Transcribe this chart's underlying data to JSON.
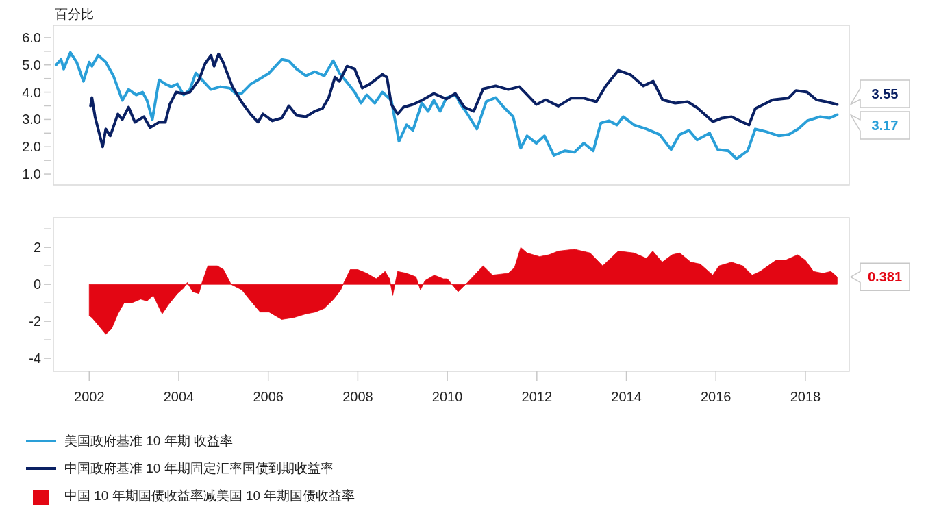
{
  "chart_data": [
    {
      "type": "line",
      "ylabel": "百分比",
      "xlim": [
        2001.2,
        2018.98
      ],
      "ylim": [
        0.6,
        6.45
      ],
      "yticks": [
        {
          "value": 1,
          "label": "1.0"
        },
        {
          "value": 1.5,
          "label": null
        },
        {
          "value": 2,
          "label": "2.0"
        },
        {
          "value": 2.5,
          "label": null
        },
        {
          "value": 3,
          "label": "3.0"
        },
        {
          "value": 3.5,
          "label": null
        },
        {
          "value": 4,
          "label": "4.0"
        },
        {
          "value": 4.5,
          "label": null
        },
        {
          "value": 5,
          "label": "5.0"
        },
        {
          "value": 5.5,
          "label": null
        },
        {
          "value": 6,
          "label": "6.0"
        }
      ],
      "tick_labels": "y",
      "legend": "bottom",
      "series": [
        {
          "name": "美国政府基准 10 年期 收益率",
          "color": "#2a9fd8",
          "x": [
            2001.26,
            2001.37,
            2001.43,
            2001.58,
            2001.72,
            2001.87,
            2002.0,
            2002.06,
            2002.2,
            2002.37,
            2002.54,
            2002.74,
            2002.88,
            2003.05,
            2003.19,
            2003.29,
            2003.41,
            2003.56,
            2003.7,
            2003.83,
            2003.97,
            2004.11,
            2004.25,
            2004.38,
            2004.52,
            2004.72,
            2004.93,
            2005.13,
            2005.27,
            2005.4,
            2005.61,
            2005.82,
            2006.02,
            2006.3,
            2006.46,
            2006.63,
            2006.84,
            2007.04,
            2007.25,
            2007.45,
            2007.59,
            2007.79,
            2007.93,
            2008.07,
            2008.2,
            2008.38,
            2008.55,
            2008.75,
            2008.92,
            2009.09,
            2009.23,
            2009.43,
            2009.57,
            2009.7,
            2009.84,
            2009.98,
            2010.19,
            2010.28,
            2010.45,
            2010.66,
            2010.87,
            2011.08,
            2011.26,
            2011.47,
            2011.64,
            2011.78,
            2011.99,
            2012.17,
            2012.38,
            2012.63,
            2012.84,
            2013.05,
            2013.26,
            2013.43,
            2013.61,
            2013.79,
            2013.93,
            2014.17,
            2014.45,
            2014.74,
            2015.0,
            2015.19,
            2015.4,
            2015.58,
            2015.86,
            2016.04,
            2016.28,
            2016.46,
            2016.71,
            2016.88,
            2017.13,
            2017.41,
            2017.63,
            2017.84,
            2018.04,
            2018.33,
            2018.54,
            2018.71
          ],
          "values": [
            5.0,
            5.2,
            4.85,
            5.45,
            5.1,
            4.4,
            5.1,
            4.95,
            5.35,
            5.1,
            4.6,
            3.7,
            4.1,
            3.9,
            4.0,
            3.7,
            3.0,
            4.45,
            4.3,
            4.2,
            4.3,
            3.9,
            4.1,
            4.7,
            4.45,
            4.1,
            4.2,
            4.15,
            3.95,
            3.95,
            4.3,
            4.5,
            4.7,
            5.2,
            5.15,
            4.85,
            4.6,
            4.75,
            4.6,
            5.15,
            4.7,
            4.3,
            4.0,
            3.6,
            3.9,
            3.6,
            4.0,
            3.7,
            2.2,
            2.8,
            2.6,
            3.6,
            3.3,
            3.7,
            3.3,
            3.8,
            3.9,
            3.6,
            3.2,
            2.65,
            3.66,
            3.8,
            3.45,
            3.1,
            1.95,
            2.4,
            2.13,
            2.4,
            1.68,
            1.85,
            1.8,
            2.13,
            1.85,
            2.87,
            2.95,
            2.8,
            3.1,
            2.8,
            2.65,
            2.45,
            1.9,
            2.45,
            2.6,
            2.25,
            2.5,
            1.9,
            1.85,
            1.56,
            1.85,
            2.65,
            2.55,
            2.4,
            2.45,
            2.65,
            2.95,
            3.1,
            3.05,
            3.17
          ]
        },
        {
          "name": "中国政府基准 10 年期固定汇率国债到期收益率",
          "color": "#0a2063",
          "x": [
            2002.03,
            2002.06,
            2002.13,
            2002.3,
            2002.37,
            2002.47,
            2002.64,
            2002.74,
            2002.88,
            2003.02,
            2003.22,
            2003.36,
            2003.56,
            2003.7,
            2003.8,
            2003.94,
            2004.11,
            2004.25,
            2004.45,
            2004.59,
            2004.72,
            2004.79,
            2004.89,
            2004.99,
            2005.2,
            2005.4,
            2005.6,
            2005.77,
            2005.88,
            2006.09,
            2006.3,
            2006.46,
            2006.63,
            2006.84,
            2007.04,
            2007.21,
            2007.35,
            2007.49,
            2007.59,
            2007.76,
            2007.93,
            2008.1,
            2008.27,
            2008.55,
            2008.65,
            2008.75,
            2008.89,
            2009.02,
            2009.23,
            2009.43,
            2009.7,
            2009.98,
            2010.18,
            2010.38,
            2010.59,
            2010.8,
            2011.08,
            2011.36,
            2011.61,
            2011.99,
            2012.2,
            2012.48,
            2012.77,
            2013.05,
            2013.33,
            2013.54,
            2013.82,
            2014.1,
            2014.38,
            2014.6,
            2014.81,
            2015.09,
            2015.37,
            2015.58,
            2015.93,
            2016.14,
            2016.35,
            2016.57,
            2016.74,
            2016.88,
            2017.27,
            2017.62,
            2017.79,
            2018.04,
            2018.25,
            2018.46,
            2018.71
          ],
          "values": [
            3.5,
            3.8,
            3.1,
            2.0,
            2.65,
            2.4,
            3.2,
            3.0,
            3.45,
            2.9,
            3.1,
            2.7,
            2.9,
            2.9,
            3.55,
            4.0,
            3.95,
            4.0,
            4.45,
            5.05,
            5.35,
            4.95,
            5.4,
            5.1,
            4.2,
            3.65,
            3.2,
            2.9,
            3.2,
            2.95,
            3.05,
            3.5,
            3.15,
            3.1,
            3.3,
            3.4,
            3.8,
            4.55,
            4.4,
            4.95,
            4.85,
            4.15,
            4.3,
            4.65,
            4.55,
            3.55,
            3.2,
            3.45,
            3.55,
            3.7,
            3.95,
            3.75,
            3.95,
            3.45,
            3.3,
            4.12,
            4.23,
            4.1,
            4.2,
            3.55,
            3.72,
            3.49,
            3.78,
            3.78,
            3.65,
            4.23,
            4.8,
            4.63,
            4.23,
            4.4,
            3.72,
            3.6,
            3.65,
            3.43,
            2.92,
            3.05,
            3.1,
            2.92,
            2.8,
            3.4,
            3.72,
            3.78,
            4.06,
            4.0,
            3.72,
            3.65,
            3.55
          ]
        }
      ],
      "annotations": [
        "3.17",
        "3.55"
      ]
    },
    {
      "type": "area",
      "xlim": [
        2001.2,
        2018.98
      ],
      "ylim": [
        -4.7,
        3.6
      ],
      "xticks": [
        2002,
        2004,
        2006,
        2008,
        2010,
        2012,
        2014,
        2016,
        2018
      ],
      "yticks": [
        {
          "value": -4,
          "label": "-4"
        },
        {
          "value": -3,
          "label": null
        },
        {
          "value": -2,
          "label": "-2"
        },
        {
          "value": -1,
          "label": null
        },
        {
          "value": 0,
          "label": "0"
        },
        {
          "value": 1,
          "label": null
        },
        {
          "value": 2,
          "label": "2"
        },
        {
          "value": 3,
          "label": null
        }
      ],
      "legend": "bottom",
      "series": [
        {
          "name": "中国 10 年期国债收益率减美国 10 年期国债收益率",
          "color": "#e30613",
          "x": [
            2002.0,
            2002.06,
            2002.2,
            2002.37,
            2002.5,
            2002.64,
            2002.78,
            2002.95,
            2003.15,
            2003.29,
            2003.43,
            2003.63,
            2003.77,
            2003.97,
            2004.11,
            2004.19,
            2004.31,
            2004.45,
            2004.52,
            2004.65,
            2004.86,
            2005.0,
            2005.17,
            2005.41,
            2005.61,
            2005.82,
            2006.02,
            2006.3,
            2006.57,
            2006.84,
            2007.05,
            2007.25,
            2007.46,
            2007.62,
            2007.69,
            2007.83,
            2008.0,
            2008.2,
            2008.41,
            2008.61,
            2008.71,
            2008.78,
            2008.89,
            2009.09,
            2009.3,
            2009.4,
            2009.5,
            2009.71,
            2009.91,
            2010.0,
            2010.07,
            2010.24,
            2010.45,
            2010.8,
            2011.01,
            2011.36,
            2011.5,
            2011.64,
            2011.78,
            2012.06,
            2012.27,
            2012.48,
            2012.84,
            2013.19,
            2013.47,
            2013.82,
            2014.17,
            2014.45,
            2014.59,
            2014.8,
            2015.02,
            2015.19,
            2015.44,
            2015.65,
            2015.93,
            2016.07,
            2016.35,
            2016.6,
            2016.81,
            2016.99,
            2017.34,
            2017.55,
            2017.83,
            2018.0,
            2018.18,
            2018.39,
            2018.57,
            2018.71
          ],
          "values": [
            -1.7,
            -1.8,
            -2.2,
            -2.7,
            -2.4,
            -1.6,
            -1.0,
            -1.0,
            -0.8,
            -0.9,
            -0.6,
            -1.6,
            -1.1,
            -0.5,
            -0.2,
            0.1,
            -0.4,
            -0.5,
            0.1,
            1.0,
            1.0,
            0.8,
            0.0,
            -0.3,
            -0.9,
            -1.5,
            -1.5,
            -1.9,
            -1.8,
            -1.6,
            -1.5,
            -1.3,
            -0.8,
            -0.3,
            0.1,
            0.8,
            0.8,
            0.6,
            0.3,
            0.7,
            0.3,
            -0.6,
            0.7,
            0.6,
            0.4,
            -0.3,
            0.2,
            0.5,
            0.3,
            0.3,
            0.1,
            -0.4,
            0.1,
            1.0,
            0.5,
            0.6,
            0.9,
            2.0,
            1.7,
            1.5,
            1.6,
            1.8,
            1.9,
            1.7,
            1.0,
            1.8,
            1.7,
            1.4,
            1.8,
            1.2,
            1.6,
            1.7,
            1.2,
            1.1,
            0.5,
            1.0,
            1.2,
            1.0,
            0.5,
            0.7,
            1.3,
            1.3,
            1.6,
            1.3,
            0.7,
            0.6,
            0.7,
            0.4
          ]
        }
      ],
      "annotations": [
        "0.381"
      ]
    }
  ]
}
